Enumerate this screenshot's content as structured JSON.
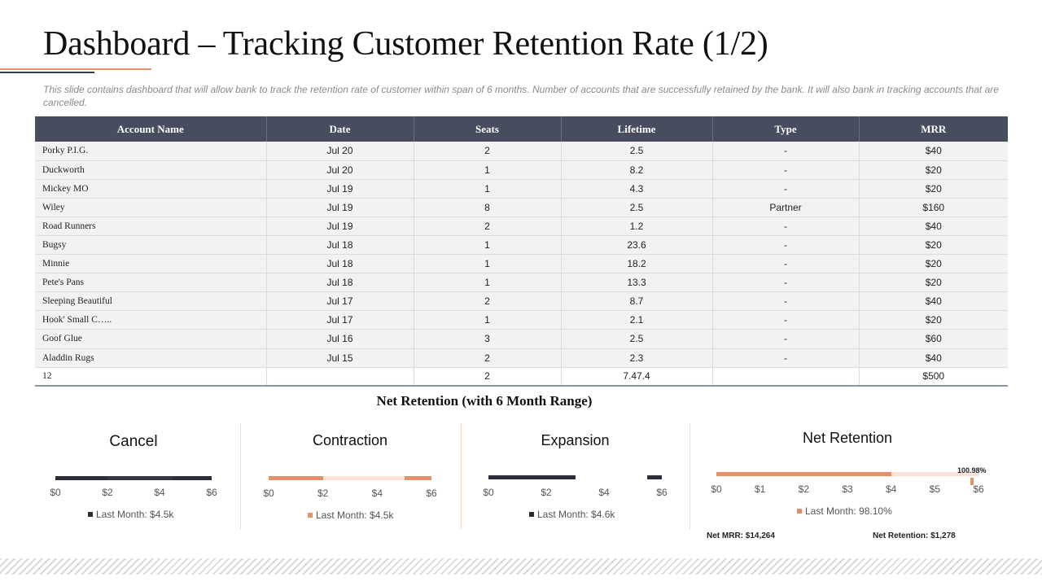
{
  "title": "Dashboard – Tracking Customer Retention Rate (1/2)",
  "description": "This slide contains dashboard that will allow bank to track the retention rate of customer within span of 6 months. Number of accounts that are successfully retained by the bank. It will also bank in tracking accounts that are cancelled.",
  "table": {
    "headers": [
      "Account Name",
      "Date",
      "Seats",
      "Lifetime",
      "Type",
      "MRR"
    ],
    "rows": [
      [
        "Porky P.I.G.",
        "Jul 20",
        "2",
        "2.5",
        "-",
        "$40"
      ],
      [
        "Duckworth",
        "Jul 20",
        "1",
        "8.2",
        "-",
        "$20"
      ],
      [
        "Mickey MO",
        "Jul 19",
        "1",
        "4.3",
        "-",
        "$20"
      ],
      [
        "Wiley",
        "Jul 19",
        "8",
        "2.5",
        "Partner",
        "$160"
      ],
      [
        "Road Runners",
        "Jul 19",
        "2",
        "1.2",
        "-",
        "$40"
      ],
      [
        "Bugsy",
        "Jul 18",
        "1",
        "23.6",
        "-",
        "$20"
      ],
      [
        "Minnie",
        "Jul 18",
        "1",
        "18.2",
        "-",
        "$20"
      ],
      [
        "Pete's Pans",
        "Jul 18",
        "1",
        "13.3",
        "-",
        "$20"
      ],
      [
        "Sleeping Beautiful",
        "Jul 17",
        "2",
        "8.7",
        "-",
        "$40"
      ],
      [
        "Hook' Small C…..",
        "Jul 17",
        "1",
        "2.1",
        "-",
        "$20"
      ],
      [
        "Goof Glue",
        "Jul 16",
        "3",
        "2.5",
        "-",
        "$60"
      ],
      [
        "Aladdin Rugs",
        "Jul 15",
        "2",
        "2.3",
        "-",
        "$40"
      ]
    ],
    "total": [
      "12",
      "",
      "2",
      "7.47.4",
      "",
      "$500"
    ]
  },
  "section_title": "Net Retention (with 6 Month Range)",
  "panels": {
    "cancel": {
      "title": "Cancel",
      "legend": "Last  Month: $4.5k",
      "ticks": [
        "$0",
        "$2",
        "$4",
        "$6"
      ]
    },
    "contraction": {
      "title": "Contraction",
      "legend": "Last  Month: $4.5k",
      "ticks": [
        "$0",
        "$2",
        "$4",
        "$6"
      ]
    },
    "expansion": {
      "title": "Expansion",
      "legend": "Last  Month: $4.6k",
      "ticks": [
        "$0",
        "$2",
        "$4",
        "$6"
      ]
    },
    "net_retention": {
      "title": "Net Retention",
      "legend": "Last  Month: 98.10%",
      "marker_label": "100.98%",
      "ticks": [
        "$0",
        "$1",
        "$2",
        "$3",
        "$4",
        "$5",
        "$6"
      ],
      "net_mrr": "Net MRR: $14,264",
      "net_retention_value": "Net Retention: $1,278"
    }
  },
  "chart_data": [
    {
      "type": "bar",
      "title": "Cancel",
      "orientation": "horizontal",
      "xlim": [
        0,
        6
      ],
      "series": [
        {
          "name": "Segment 1",
          "start": 0,
          "end": 2
        },
        {
          "name": "Segment 2",
          "start": 2,
          "end": 4.5
        },
        {
          "name": "Segment 3",
          "start": 4.5,
          "end": 6
        }
      ],
      "legend": "Last  Month: $4.5k"
    },
    {
      "type": "bar",
      "title": "Contraction",
      "orientation": "horizontal",
      "xlim": [
        0,
        6
      ],
      "series": [
        {
          "name": "Segment 1",
          "start": 0,
          "end": 2
        },
        {
          "name": "Segment 2",
          "start": 2,
          "end": 5
        },
        {
          "name": "Segment 3",
          "start": 5,
          "end": 6
        }
      ],
      "legend": "Last  Month: $4.5k"
    },
    {
      "type": "bar",
      "title": "Expansion",
      "orientation": "horizontal",
      "xlim": [
        0,
        6
      ],
      "series": [
        {
          "name": "Segment 1",
          "start": 0,
          "end": 3
        },
        {
          "name": "Segment 2",
          "start": 5.5,
          "end": 6
        }
      ],
      "legend": "Last  Month: $4.6k"
    },
    {
      "type": "bar",
      "title": "Net Retention",
      "orientation": "horizontal",
      "xlim": [
        0,
        6
      ],
      "series": [
        {
          "name": "Segment 1",
          "start": 0,
          "end": 4
        },
        {
          "name": "Segment 2",
          "start": 4,
          "end": 6
        }
      ],
      "marker": {
        "value": 5.85,
        "label": "100.98%"
      },
      "legend": "Last  Month: 98.10%"
    }
  ],
  "colors": {
    "header": "#474c5e",
    "accent_orange": "#e3906b",
    "light_orange": "#f6c9b6",
    "faint_orange": "#fce3d8",
    "dark": "#2b2e38"
  }
}
